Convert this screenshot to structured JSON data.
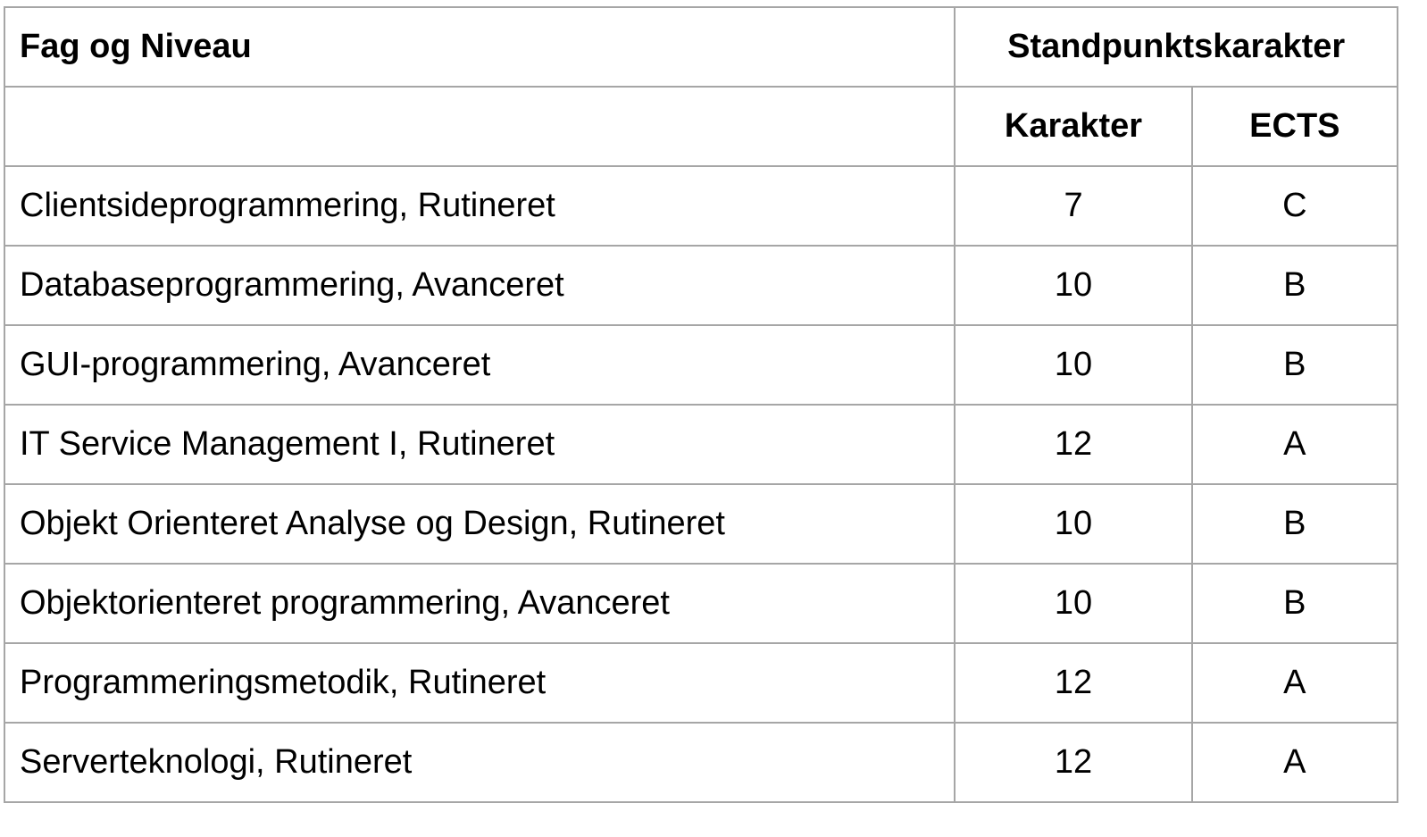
{
  "table": {
    "header": {
      "subject_level": "Fag og Niveau",
      "standpoint": "Standpunktskarakter",
      "grade": "Karakter",
      "ects": "ECTS"
    },
    "rows": [
      {
        "subject": "Clientsideprogrammering, Rutineret",
        "grade": "7",
        "ects": "C"
      },
      {
        "subject": "Databaseprogrammering, Avanceret",
        "grade": "10",
        "ects": "B"
      },
      {
        "subject": "GUI-programmering, Avanceret",
        "grade": "10",
        "ects": "B"
      },
      {
        "subject": "IT Service Management I, Rutineret",
        "grade": "12",
        "ects": "A"
      },
      {
        "subject": "Objekt Orienteret Analyse og Design, Rutineret",
        "grade": "10",
        "ects": "B"
      },
      {
        "subject": "Objektorienteret programmering, Avanceret",
        "grade": "10",
        "ects": "B"
      },
      {
        "subject": "Programmeringsmetodik, Rutineret",
        "grade": "12",
        "ects": "A"
      },
      {
        "subject": "Serverteknologi, Rutineret",
        "grade": "12",
        "ects": "A"
      }
    ]
  },
  "colors": {
    "border": "#a6a6a6",
    "text": "#000000",
    "background": "#ffffff"
  }
}
